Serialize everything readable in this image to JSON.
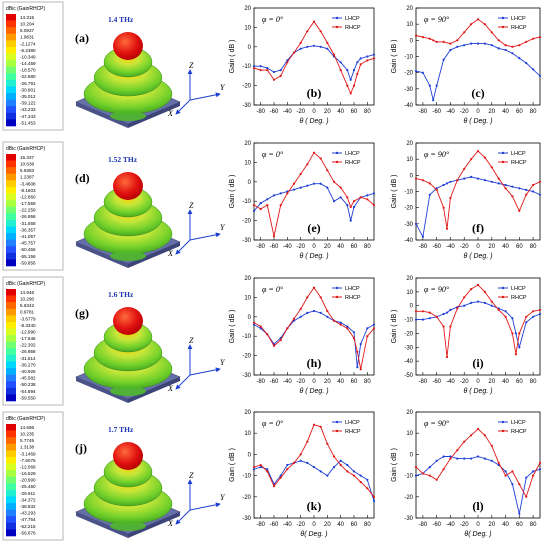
{
  "colorbars": [
    {
      "title": "dBic (GainRHCP)",
      "values": [
        "14.315",
        "10.204",
        "6.0937",
        "1.9831",
        "-2.1274",
        "-6.2380",
        "-10.349",
        "-14.459",
        "-18.570",
        "-22.680",
        "-26.791",
        "-30.901",
        "-35.012",
        "-39.122",
        "-43.233",
        "-47.343",
        "-51.453"
      ]
    },
    {
      "title": "dBic (GainRHCP)",
      "values": [
        "15.337",
        "10.638",
        "5.9383",
        "1.2387",
        "-3.4608",
        "-8.1603",
        "-12.860",
        "-17.559",
        "-22.259",
        "-26.958",
        "-31.658",
        "-36.357",
        "-41.057",
        "-45.757",
        "-50.456",
        "-55.156",
        "-59.856"
      ]
    },
    {
      "title": "dBic (GainRHCP)",
      "values": [
        "14.946",
        "10.290",
        "5.6342",
        "0.9781",
        "-3.6779",
        "-8.3340",
        "-12.990",
        "-17.646",
        "-22.302",
        "-26.958",
        "-31.614",
        "-36.270",
        "-40.926",
        "-45.582",
        "-50.238",
        "-54.894",
        "-59.550"
      ]
    },
    {
      "title": "dBic (GainRHCP)",
      "values": [
        "14.696",
        "10.235",
        "5.7745",
        "1.3138",
        "-3.1469",
        "-7.6076",
        "-12.068",
        "-16.529",
        "-20.990",
        "-25.450",
        "-29.911",
        "-34.372",
        "-38.832",
        "-43.293",
        "-47.754",
        "-52.215",
        "-56.676"
      ]
    }
  ],
  "pattern_panels": [
    {
      "letter": "(a)",
      "freq": "1.4 THz"
    },
    {
      "letter": "(d)",
      "freq": "1.52 THz"
    },
    {
      "letter": "(g)",
      "freq": "1.6 THz"
    },
    {
      "letter": "(j)",
      "freq": "1.7 THz"
    }
  ],
  "axes_labels": {
    "x": "Y",
    "y": "Z",
    "z": "X"
  },
  "colors": {
    "lhcp": "#1f3fd6",
    "rhcp": "#e01818"
  },
  "chart_data": [
    {
      "type": "line",
      "panel": "(b)",
      "annotation": "φ = 0°",
      "xlabel": "θ ( Deg. )",
      "ylabel": "Gain ( dB )",
      "xlim": [
        -90,
        90
      ],
      "ylim": [
        -30,
        20
      ],
      "xticks": [
        -80,
        -60,
        -40,
        -20,
        0,
        20,
        40,
        60,
        80
      ],
      "yticks": [
        -30,
        -20,
        -10,
        0,
        10,
        20
      ],
      "legend": "top-right",
      "x": [
        -90,
        -80,
        -70,
        -60,
        -50,
        -40,
        -30,
        -20,
        -10,
        0,
        10,
        20,
        30,
        40,
        50,
        55,
        60,
        65,
        70,
        80,
        90
      ],
      "series": [
        {
          "name": "LHCP",
          "values": [
            -10,
            -10,
            -11,
            -13,
            -12,
            -7,
            -3,
            -1,
            0,
            0.5,
            0,
            -1,
            -5,
            -8,
            -12,
            -17,
            -12,
            -8,
            -6,
            -5,
            -4
          ]
        },
        {
          "name": "RHCP",
          "values": [
            -11,
            -12,
            -12,
            -17,
            -15,
            -8,
            -3,
            2,
            8,
            13,
            8,
            2,
            -4,
            -12,
            -20,
            -24,
            -20,
            -14,
            -9,
            -7,
            -6
          ]
        }
      ]
    },
    {
      "type": "line",
      "panel": "(c)",
      "annotation": "φ = 90°",
      "xlabel": "θ ( Deg. )",
      "ylabel": "Gain ( dB )",
      "xlim": [
        -90,
        90
      ],
      "ylim": [
        -40,
        20
      ],
      "xticks": [
        -80,
        -60,
        -40,
        -20,
        0,
        20,
        40,
        60,
        80
      ],
      "yticks": [
        -40,
        -30,
        -20,
        -10,
        0,
        10,
        20
      ],
      "legend": "top-right",
      "x": [
        -90,
        -80,
        -70,
        -65,
        -60,
        -50,
        -40,
        -30,
        -20,
        -10,
        0,
        10,
        20,
        30,
        40,
        50,
        60,
        70,
        80,
        90
      ],
      "series": [
        {
          "name": "LHCP",
          "values": [
            -19,
            -20,
            -28,
            -37,
            -28,
            -12,
            -6,
            -4,
            -3,
            -2,
            -2,
            -2,
            -3,
            -5,
            -6,
            -8,
            -11,
            -14,
            -18,
            -22
          ]
        },
        {
          "name": "RHCP",
          "values": [
            3,
            2,
            1,
            0,
            -1,
            -1,
            -2,
            0,
            5,
            10,
            13,
            10,
            5,
            0,
            -3,
            -4,
            -3,
            -1,
            1,
            2
          ]
        }
      ]
    },
    {
      "type": "line",
      "panel": "(e)",
      "annotation": "φ = 0°",
      "xlabel": "θ ( Deg. )",
      "ylabel": "Gain ( dB )",
      "xlim": [
        -90,
        90
      ],
      "ylim": [
        -30,
        20
      ],
      "xticks": [
        -80,
        -60,
        -40,
        -20,
        0,
        20,
        40,
        60,
        80
      ],
      "yticks": [
        -30,
        -20,
        -10,
        0,
        10,
        20
      ],
      "legend": "top-right",
      "x": [
        -90,
        -80,
        -70,
        -60,
        -50,
        -40,
        -30,
        -20,
        -10,
        0,
        10,
        20,
        30,
        40,
        50,
        55,
        60,
        70,
        80,
        90
      ],
      "series": [
        {
          "name": "LHCP",
          "values": [
            -15,
            -11,
            -9,
            -7,
            -6,
            -5,
            -4,
            -3,
            -2,
            -1,
            -1,
            -3,
            -10,
            -8,
            -12,
            -20,
            -13,
            -8,
            -7,
            -6
          ]
        },
        {
          "name": "RHCP",
          "values": [
            -12,
            -14,
            -12,
            -28,
            -12,
            -6,
            -1,
            4,
            9,
            15,
            12,
            6,
            0,
            -3,
            -8,
            -13,
            -10,
            -8,
            -9,
            -12
          ]
        }
      ]
    },
    {
      "type": "line",
      "panel": "(f)",
      "annotation": "φ = 90°",
      "xlabel": "θ ( Deg. )",
      "ylabel": "Gain ( dB )",
      "xlim": [
        -90,
        90
      ],
      "ylim": [
        -40,
        20
      ],
      "xticks": [
        -80,
        -60,
        -40,
        -20,
        0,
        20,
        40,
        60,
        80
      ],
      "yticks": [
        -40,
        -30,
        -20,
        -10,
        0,
        10,
        20
      ],
      "legend": "top-right",
      "x": [
        -90,
        -80,
        -70,
        -60,
        -50,
        -45,
        -40,
        -30,
        -20,
        -10,
        0,
        10,
        20,
        30,
        40,
        50,
        60,
        70,
        80,
        90
      ],
      "series": [
        {
          "name": "LHCP",
          "values": [
            -30,
            -38,
            -12,
            -8,
            -6,
            -5,
            -4,
            -3,
            -2,
            -1,
            -2,
            -3,
            -4,
            -5,
            -6,
            -7,
            -8,
            -9,
            -10,
            -12
          ]
        },
        {
          "name": "RHCP",
          "values": [
            -2,
            -3,
            -5,
            -9,
            -20,
            -33,
            -14,
            -3,
            4,
            10,
            15,
            11,
            5,
            -2,
            -8,
            -13,
            -22,
            -12,
            -6,
            -4
          ]
        }
      ]
    },
    {
      "type": "line",
      "panel": "(h)",
      "annotation": "φ = 0°",
      "xlabel": "θ ( Deg. )",
      "ylabel": "Gain ( dB )",
      "xlim": [
        -90,
        90
      ],
      "ylim": [
        -30,
        20
      ],
      "xticks": [
        -80,
        -60,
        -40,
        -20,
        0,
        20,
        40,
        60,
        80
      ],
      "yticks": [
        -30,
        -20,
        -10,
        0,
        10,
        20
      ],
      "legend": "top-right",
      "x": [
        -90,
        -80,
        -70,
        -60,
        -50,
        -40,
        -30,
        -20,
        -10,
        0,
        10,
        20,
        30,
        40,
        50,
        60,
        65,
        70,
        80,
        90
      ],
      "series": [
        {
          "name": "LHCP",
          "values": [
            -4,
            -6,
            -9,
            -14,
            -11,
            -6,
            -2,
            0,
            2,
            3,
            2,
            0,
            -2,
            -3,
            -5,
            -8,
            -26,
            -14,
            -6,
            -4
          ]
        },
        {
          "name": "RHCP",
          "values": [
            -3,
            -5,
            -9,
            -15,
            -12,
            -6,
            -1,
            4,
            10,
            15,
            10,
            3,
            -2,
            -4,
            -6,
            -11,
            -18,
            -27,
            -10,
            -6
          ]
        }
      ]
    },
    {
      "type": "line",
      "panel": "(i)",
      "annotation": "φ = 90°",
      "xlabel": "θ ( Deg. )",
      "ylabel": "Gain ( dB )",
      "xlim": [
        -90,
        90
      ],
      "ylim": [
        -50,
        20
      ],
      "xticks": [
        -80,
        -60,
        -40,
        -20,
        0,
        20,
        40,
        60,
        80
      ],
      "yticks": [
        -50,
        -40,
        -30,
        -20,
        -10,
        0,
        10,
        20
      ],
      "legend": "top-right",
      "x": [
        -90,
        -80,
        -70,
        -60,
        -50,
        -45,
        -40,
        -30,
        -20,
        -10,
        0,
        10,
        20,
        30,
        40,
        50,
        55,
        60,
        70,
        80,
        90
      ],
      "series": [
        {
          "name": "LHCP",
          "values": [
            -10,
            -10,
            -9,
            -8,
            -6,
            -5,
            -3,
            -1,
            0,
            2,
            3,
            2,
            0,
            -2,
            -4,
            -9,
            -20,
            -30,
            -12,
            -8,
            -6
          ]
        },
        {
          "name": "RHCP",
          "values": [
            -4,
            -4,
            -5,
            -8,
            -15,
            -37,
            -15,
            -2,
            6,
            12,
            15,
            10,
            3,
            -3,
            -8,
            -20,
            -35,
            -20,
            -8,
            -4,
            -3
          ]
        }
      ]
    },
    {
      "type": "line",
      "panel": "(k)",
      "annotation": "φ = 0°",
      "xlabel": "θ( Deg. )",
      "ylabel": "Gain ( dB )",
      "xlim": [
        -90,
        90
      ],
      "ylim": [
        -30,
        20
      ],
      "xticks": [
        -80,
        -60,
        -40,
        -20,
        0,
        20,
        40,
        60,
        80
      ],
      "yticks": [
        -30,
        -20,
        -10,
        0,
        10,
        20
      ],
      "legend": "top-right",
      "x": [
        -90,
        -80,
        -70,
        -60,
        -50,
        -40,
        -30,
        -20,
        -10,
        0,
        10,
        20,
        30,
        40,
        50,
        60,
        70,
        80,
        90
      ],
      "series": [
        {
          "name": "LHCP",
          "values": [
            -7,
            -6,
            -7,
            -14,
            -10,
            -5,
            -4,
            -3,
            -4,
            -6,
            -8,
            -10,
            -6,
            -3,
            -5,
            -8,
            -10,
            -12,
            -22
          ]
        },
        {
          "name": "RHCP",
          "values": [
            -6,
            -5,
            -8,
            -15,
            -11,
            -7,
            -4,
            0,
            6,
            14,
            13,
            5,
            -1,
            -5,
            -8,
            -10,
            -13,
            -16,
            -20
          ]
        }
      ]
    },
    {
      "type": "line",
      "panel": "(l)",
      "annotation": "φ = 90°",
      "xlabel": "θ( Deg. )",
      "ylabel": "Gain ( dB )",
      "xlim": [
        -90,
        90
      ],
      "ylim": [
        -30,
        20
      ],
      "xticks": [
        -80,
        -60,
        -40,
        -20,
        0,
        20,
        40,
        60,
        80
      ],
      "yticks": [
        -30,
        -20,
        -10,
        0,
        10,
        20
      ],
      "legend": "top-right",
      "x": [
        -90,
        -80,
        -70,
        -60,
        -50,
        -40,
        -30,
        -20,
        -10,
        0,
        10,
        20,
        30,
        40,
        50,
        60,
        70,
        80,
        90
      ],
      "series": [
        {
          "name": "LHCP",
          "values": [
            -10,
            -9,
            -6,
            -3,
            -1,
            -1,
            -2,
            -2,
            -2,
            -1,
            -2,
            -3,
            -5,
            -8,
            -14,
            -28,
            -11,
            -8,
            -7
          ]
        },
        {
          "name": "RHCP",
          "values": [
            -6,
            -9,
            -10,
            -12,
            -7,
            -2,
            2,
            6,
            9,
            12,
            9,
            4,
            -4,
            -10,
            -8,
            -14,
            -20,
            -10,
            -4
          ]
        }
      ]
    }
  ]
}
